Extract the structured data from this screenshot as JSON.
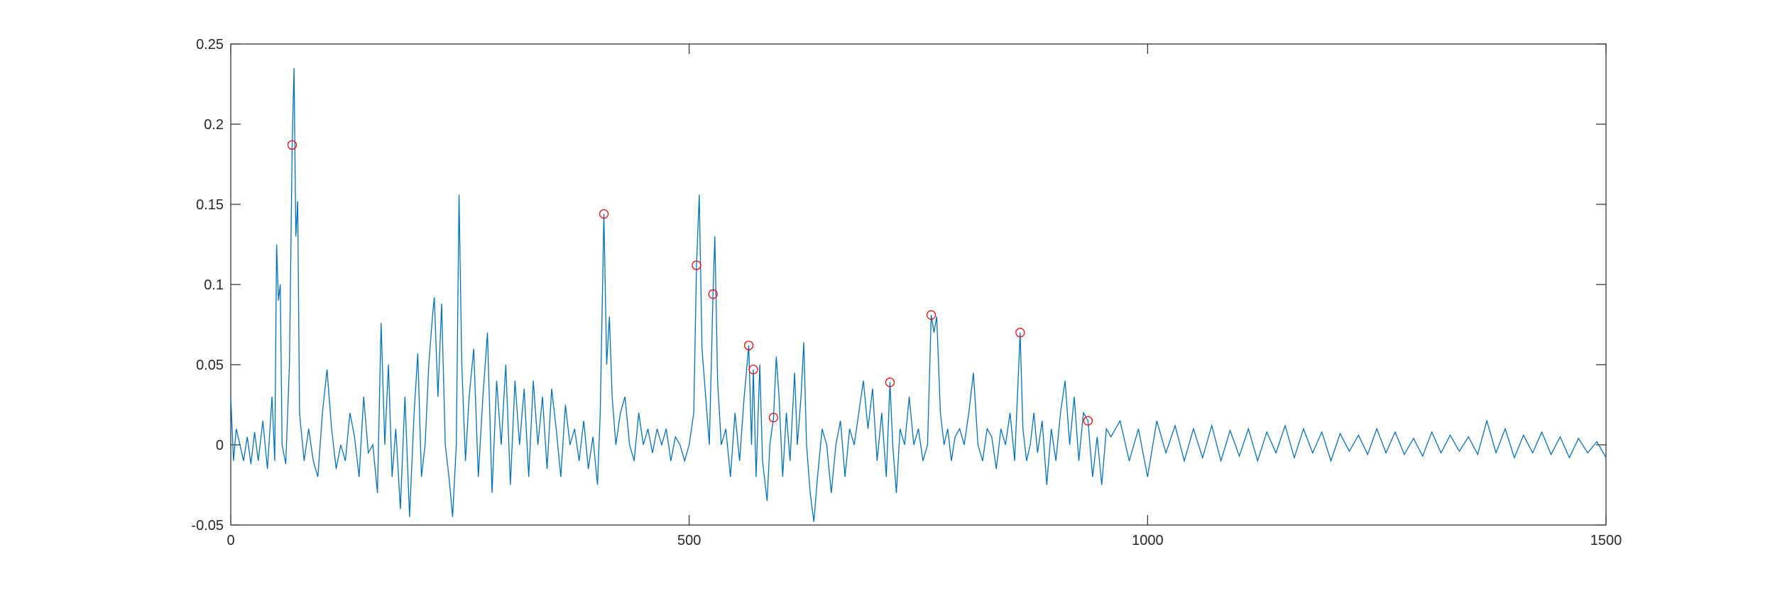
{
  "chart_data": {
    "type": "line",
    "color": "#0072bd",
    "x": [
      0,
      3,
      6,
      10,
      14,
      18,
      22,
      26,
      30,
      35,
      40,
      45,
      48,
      50,
      52,
      54,
      56,
      60,
      64,
      67,
      69,
      71,
      73,
      75,
      80,
      85,
      90,
      95,
      100,
      105,
      110,
      115,
      120,
      125,
      130,
      135,
      140,
      145,
      150,
      155,
      160,
      164,
      168,
      172,
      176,
      180,
      185,
      190,
      195,
      200,
      204,
      208,
      212,
      216,
      220,
      222,
      226,
      230,
      234,
      238,
      242,
      246,
      249,
      252,
      256,
      260,
      265,
      270,
      275,
      280,
      285,
      290,
      295,
      300,
      305,
      310,
      315,
      320,
      325,
      330,
      335,
      340,
      345,
      350,
      355,
      360,
      365,
      370,
      375,
      380,
      385,
      390,
      395,
      400,
      403,
      407,
      410,
      413,
      416,
      420,
      425,
      430,
      435,
      440,
      445,
      450,
      455,
      460,
      465,
      470,
      475,
      480,
      485,
      490,
      495,
      500,
      505,
      508,
      511,
      514,
      518,
      522,
      526,
      528,
      531,
      535,
      540,
      545,
      550,
      555,
      560,
      565,
      568,
      570,
      573,
      577,
      580,
      585,
      588,
      592,
      595,
      598,
      602,
      606,
      610,
      615,
      618,
      622,
      625,
      628,
      632,
      636,
      640,
      645,
      650,
      655,
      660,
      665,
      670,
      675,
      680,
      685,
      690,
      695,
      700,
      705,
      710,
      715,
      719,
      722,
      726,
      730,
      735,
      740,
      745,
      750,
      755,
      760,
      764,
      767,
      770,
      774,
      778,
      782,
      786,
      790,
      795,
      800,
      805,
      810,
      815,
      820,
      825,
      830,
      835,
      840,
      845,
      850,
      855,
      858,
      861,
      864,
      868,
      872,
      876,
      880,
      885,
      890,
      895,
      900,
      905,
      910,
      915,
      920,
      925,
      930,
      935,
      940,
      945,
      950,
      955,
      960,
      970,
      980,
      990,
      1000,
      1010,
      1020,
      1030,
      1040,
      1050,
      1060,
      1070,
      1080,
      1090,
      1100,
      1110,
      1120,
      1130,
      1140,
      1150,
      1160,
      1170,
      1180,
      1190,
      1200,
      1210,
      1220,
      1230,
      1240,
      1250,
      1260,
      1270,
      1280,
      1290,
      1300,
      1310,
      1320,
      1330,
      1340,
      1350,
      1360,
      1370,
      1380,
      1390,
      1400,
      1410,
      1420,
      1430,
      1440,
      1450,
      1460,
      1470,
      1480,
      1490,
      1500
    ],
    "values": [
      0.03,
      -0.01,
      0.01,
      0.0,
      -0.01,
      0.005,
      -0.012,
      0.008,
      -0.01,
      0.015,
      -0.015,
      0.03,
      -0.01,
      0.125,
      0.09,
      0.1,
      0.0,
      -0.012,
      0.05,
      0.187,
      0.235,
      0.13,
      0.152,
      0.02,
      -0.01,
      0.01,
      -0.01,
      -0.02,
      0.02,
      0.047,
      0.01,
      -0.015,
      0.0,
      -0.01,
      0.02,
      0.005,
      -0.02,
      0.03,
      -0.005,
      0.0,
      -0.03,
      0.076,
      0.0,
      0.05,
      -0.02,
      0.01,
      -0.04,
      0.03,
      -0.045,
      0.02,
      0.057,
      -0.02,
      0.0,
      0.05,
      0.08,
      0.092,
      0.03,
      0.088,
      0.0,
      -0.02,
      -0.045,
      0.0,
      0.156,
      0.05,
      -0.01,
      0.03,
      0.06,
      -0.02,
      0.03,
      0.07,
      -0.03,
      0.04,
      0.0,
      0.05,
      -0.025,
      0.04,
      0.0,
      0.035,
      -0.02,
      0.04,
      0.0,
      0.03,
      -0.015,
      0.035,
      0.01,
      -0.02,
      0.025,
      0.0,
      0.01,
      -0.01,
      0.015,
      -0.015,
      0.005,
      -0.025,
      0.02,
      0.144,
      0.05,
      0.08,
      0.03,
      0.0,
      0.02,
      0.03,
      0.0,
      -0.01,
      0.02,
      0.0,
      0.01,
      -0.005,
      0.01,
      0.0,
      0.01,
      -0.01,
      0.005,
      0.0,
      -0.01,
      0.0,
      0.02,
      0.112,
      0.156,
      0.06,
      0.03,
      0.0,
      0.094,
      0.13,
      0.04,
      0.0,
      0.01,
      -0.02,
      0.02,
      -0.01,
      0.03,
      0.062,
      0.0,
      0.047,
      -0.02,
      0.05,
      -0.01,
      -0.035,
      0.0,
      0.017,
      0.055,
      0.03,
      -0.02,
      0.02,
      -0.01,
      0.045,
      0.0,
      0.03,
      0.064,
      0.0,
      -0.03,
      -0.048,
      -0.02,
      0.01,
      0.0,
      -0.03,
      0.0,
      0.015,
      -0.02,
      0.01,
      0.0,
      0.02,
      0.04,
      0.01,
      0.035,
      -0.01,
      0.02,
      -0.02,
      0.039,
      0.0,
      -0.03,
      0.01,
      0.0,
      0.03,
      0.0,
      0.01,
      -0.01,
      0.0,
      0.081,
      0.07,
      0.08,
      0.02,
      0.0,
      0.01,
      -0.01,
      0.005,
      0.01,
      0.0,
      0.02,
      0.045,
      0.0,
      -0.01,
      0.01,
      0.005,
      -0.015,
      0.01,
      0.0,
      0.02,
      -0.01,
      0.03,
      0.07,
      0.01,
      -0.01,
      0.0,
      0.02,
      -0.005,
      0.015,
      -0.025,
      0.01,
      -0.01,
      0.02,
      0.04,
      0.0,
      0.03,
      -0.01,
      0.02,
      0.015,
      -0.02,
      0.005,
      -0.025,
      0.01,
      0.005,
      0.015,
      -0.01,
      0.01,
      -0.02,
      0.015,
      -0.005,
      0.012,
      -0.01,
      0.01,
      -0.008,
      0.012,
      -0.01,
      0.009,
      -0.007,
      0.01,
      -0.01,
      0.008,
      -0.005,
      0.012,
      -0.008,
      0.01,
      -0.005,
      0.008,
      -0.01,
      0.007,
      -0.004,
      0.006,
      -0.006,
      0.01,
      -0.005,
      0.008,
      -0.006,
      0.004,
      -0.007,
      0.008,
      -0.005,
      0.006,
      -0.004,
      0.005,
      -0.006,
      0.015,
      -0.005,
      0.01,
      -0.008,
      0.006,
      -0.005,
      0.008,
      -0.006,
      0.005,
      -0.008,
      0.004,
      -0.005,
      0.002,
      -0.008
    ],
    "markers": {
      "type": "scatter",
      "color": "#ff0000",
      "x": [
        67,
        407,
        508,
        526,
        565,
        570,
        592,
        719,
        764,
        861,
        935
      ],
      "values": [
        0.187,
        0.144,
        0.112,
        0.094,
        0.062,
        0.047,
        0.017,
        0.039,
        0.081,
        0.07,
        0.015
      ]
    },
    "xlim": [
      0,
      1500
    ],
    "ylim": [
      -0.05,
      0.25
    ],
    "xticks": [
      0,
      500,
      1000,
      1500
    ],
    "yticks": [
      -0.05,
      0,
      0.05,
      0.1,
      0.15,
      0.2,
      0.25
    ]
  }
}
